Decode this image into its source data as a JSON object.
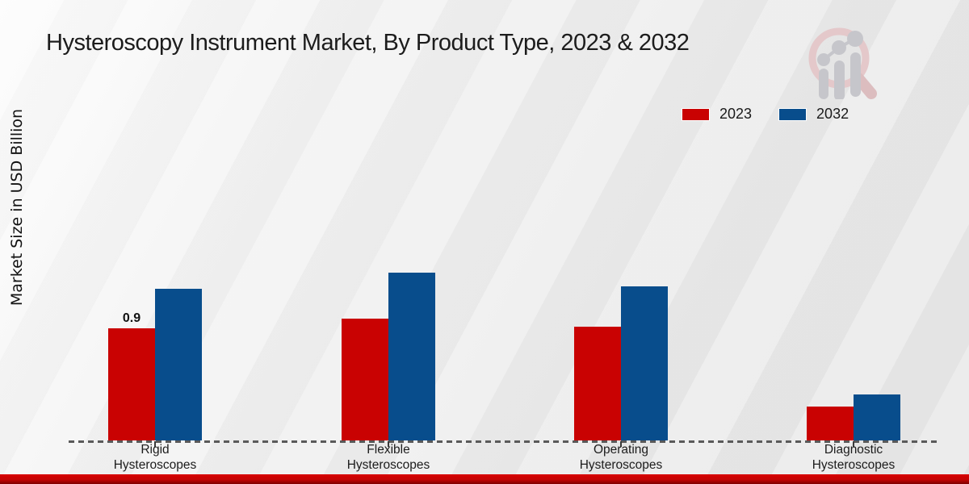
{
  "chart_data": {
    "type": "bar",
    "title": "Hysteroscopy Instrument Market, By Product Type, 2023 & 2032",
    "ylabel": "Market Size in USD Billion",
    "xlabel": "",
    "categories": [
      "Rigid\nHysteroscopes",
      "Flexible\nHysteroscopes",
      "Operating\nHysteroscopes",
      "Diagnostic\nHysteroscopes"
    ],
    "series": [
      {
        "name": "2023",
        "color": "#c90202",
        "values": [
          0.9,
          0.98,
          0.91,
          0.27
        ]
      },
      {
        "name": "2032",
        "color": "#084d8c",
        "values": [
          1.22,
          1.35,
          1.24,
          0.37
        ]
      }
    ],
    "bar_labels": [
      {
        "series_index": 0,
        "category_index": 0,
        "text": "0.9"
      }
    ],
    "ylim": [
      0,
      1.6
    ],
    "grid": false,
    "y_axis_ticks_visible": false,
    "legend_position": "top-right",
    "baseline_style": "dashed"
  },
  "footer": {
    "bar_color": "#c40404"
  },
  "watermark": {
    "icon": "market-research-magnifier-bar-chart-logo",
    "ring_color": "#e4c8ca",
    "bars_color": "#c6c6cb"
  }
}
